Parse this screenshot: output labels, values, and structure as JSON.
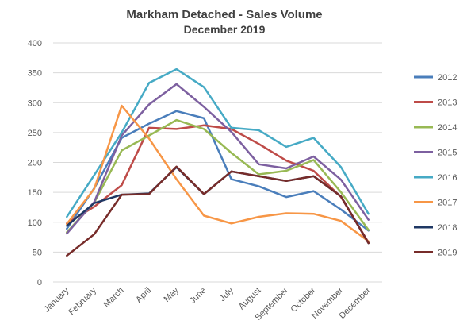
{
  "chart_data": {
    "type": "line",
    "title": "Markham Detached - Sales Volume",
    "subtitle": "December 2019",
    "xlabel": "",
    "ylabel": "",
    "ylim": [
      0,
      400
    ],
    "yticks": [
      0,
      50,
      100,
      150,
      200,
      250,
      300,
      350,
      400
    ],
    "grid": true,
    "legend_position": "right",
    "categories": [
      "January",
      "February",
      "March",
      "April",
      "May",
      "June",
      "July",
      "August",
      "September",
      "October",
      "November",
      "December"
    ],
    "series": [
      {
        "name": "2012",
        "color": "#4a7ebb",
        "values": [
          89,
          157,
          241,
          265,
          286,
          274,
          172,
          160,
          142,
          152,
          121,
          86
        ]
      },
      {
        "name": "2013",
        "color": "#be4b48",
        "values": [
          98,
          126,
          162,
          258,
          256,
          262,
          256,
          231,
          203,
          186,
          142,
          66
        ]
      },
      {
        "name": "2014",
        "color": "#98b954",
        "values": [
          83,
          133,
          220,
          245,
          271,
          256,
          216,
          180,
          186,
          204,
          150,
          87
        ]
      },
      {
        "name": "2015",
        "color": "#7d60a0",
        "values": [
          81,
          134,
          245,
          297,
          331,
          293,
          251,
          197,
          190,
          210,
          171,
          104
        ]
      },
      {
        "name": "2016",
        "color": "#46aac5",
        "values": [
          109,
          179,
          250,
          333,
          356,
          326,
          258,
          254,
          226,
          241,
          192,
          114
        ]
      },
      {
        "name": "2017",
        "color": "#f79646",
        "values": [
          97,
          156,
          295,
          240,
          172,
          111,
          98,
          109,
          115,
          114,
          102,
          68
        ]
      },
      {
        "name": "2018",
        "color": "#1f3864",
        "values": [
          94,
          132,
          146,
          148,
          192,
          147,
          185,
          177,
          169,
          177,
          143,
          65
        ]
      },
      {
        "name": "2019",
        "color": "#772c2a",
        "values": [
          44,
          80,
          146,
          147,
          193,
          147,
          185,
          177,
          169,
          177,
          143,
          65
        ]
      }
    ]
  }
}
